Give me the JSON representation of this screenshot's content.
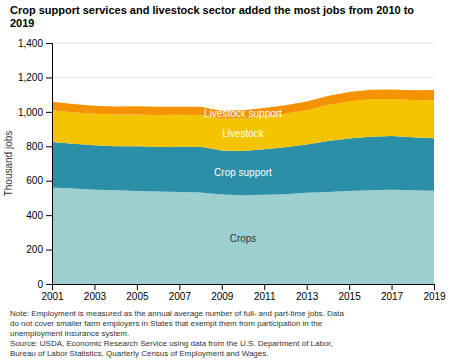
{
  "chart_data": {
    "type": "area",
    "stacked": true,
    "title": "Crop support services and livestock sector added the most jobs from 2010 to 2019",
    "ylabel": "Thousand jobs",
    "x": [
      2001,
      2002,
      2003,
      2004,
      2005,
      2006,
      2007,
      2008,
      2009,
      2010,
      2011,
      2012,
      2013,
      2014,
      2015,
      2016,
      2017,
      2018,
      2019
    ],
    "series": [
      {
        "name": "Crops",
        "color": "#9ECFCF",
        "values": [
          560,
          555,
          548,
          545,
          540,
          538,
          535,
          532,
          520,
          515,
          518,
          522,
          530,
          535,
          540,
          545,
          548,
          545,
          542
        ]
      },
      {
        "name": "Crop support",
        "color": "#2B8FA8",
        "values": [
          265,
          260,
          258,
          255,
          260,
          258,
          262,
          265,
          255,
          258,
          265,
          272,
          280,
          295,
          305,
          310,
          312,
          308,
          305
        ]
      },
      {
        "name": "Livestock",
        "color": "#F5C400",
        "values": [
          185,
          182,
          183,
          184,
          185,
          186,
          186,
          185,
          185,
          190,
          192,
          195,
          200,
          210,
          215,
          218,
          215,
          216,
          220
        ]
      },
      {
        "name": "Livestock support",
        "color": "#F59200",
        "values": [
          48,
          48,
          47,
          47,
          47,
          47,
          47,
          47,
          47,
          47,
          48,
          49,
          50,
          52,
          55,
          55,
          55,
          57,
          60
        ]
      }
    ],
    "xlim": [
      2001,
      2019
    ],
    "xticks": [
      2001,
      2003,
      2005,
      2007,
      2009,
      2011,
      2013,
      2015,
      2017,
      2019
    ],
    "ylim": [
      0,
      1400
    ],
    "yticks": [
      0,
      200,
      400,
      600,
      800,
      {
        "value": 1000,
        "label": "1,000"
      },
      {
        "value": 1200,
        "label": "1,200"
      },
      {
        "value": 1400,
        "label": "1,400"
      }
    ],
    "grid": true,
    "annotations": [
      "Note: Employment is measured as the annual average number of full- and part-time jobs. Data",
      "do not cover smaller farm employers in States that exempt them from participation in the",
      "unemployment insurance system.",
      "Source: USDA, Economic Research Service using data from the U.S. Department of Labor,",
      "Bureau of Labor Statistics, Quarterly Census of Employment and Wages."
    ]
  }
}
